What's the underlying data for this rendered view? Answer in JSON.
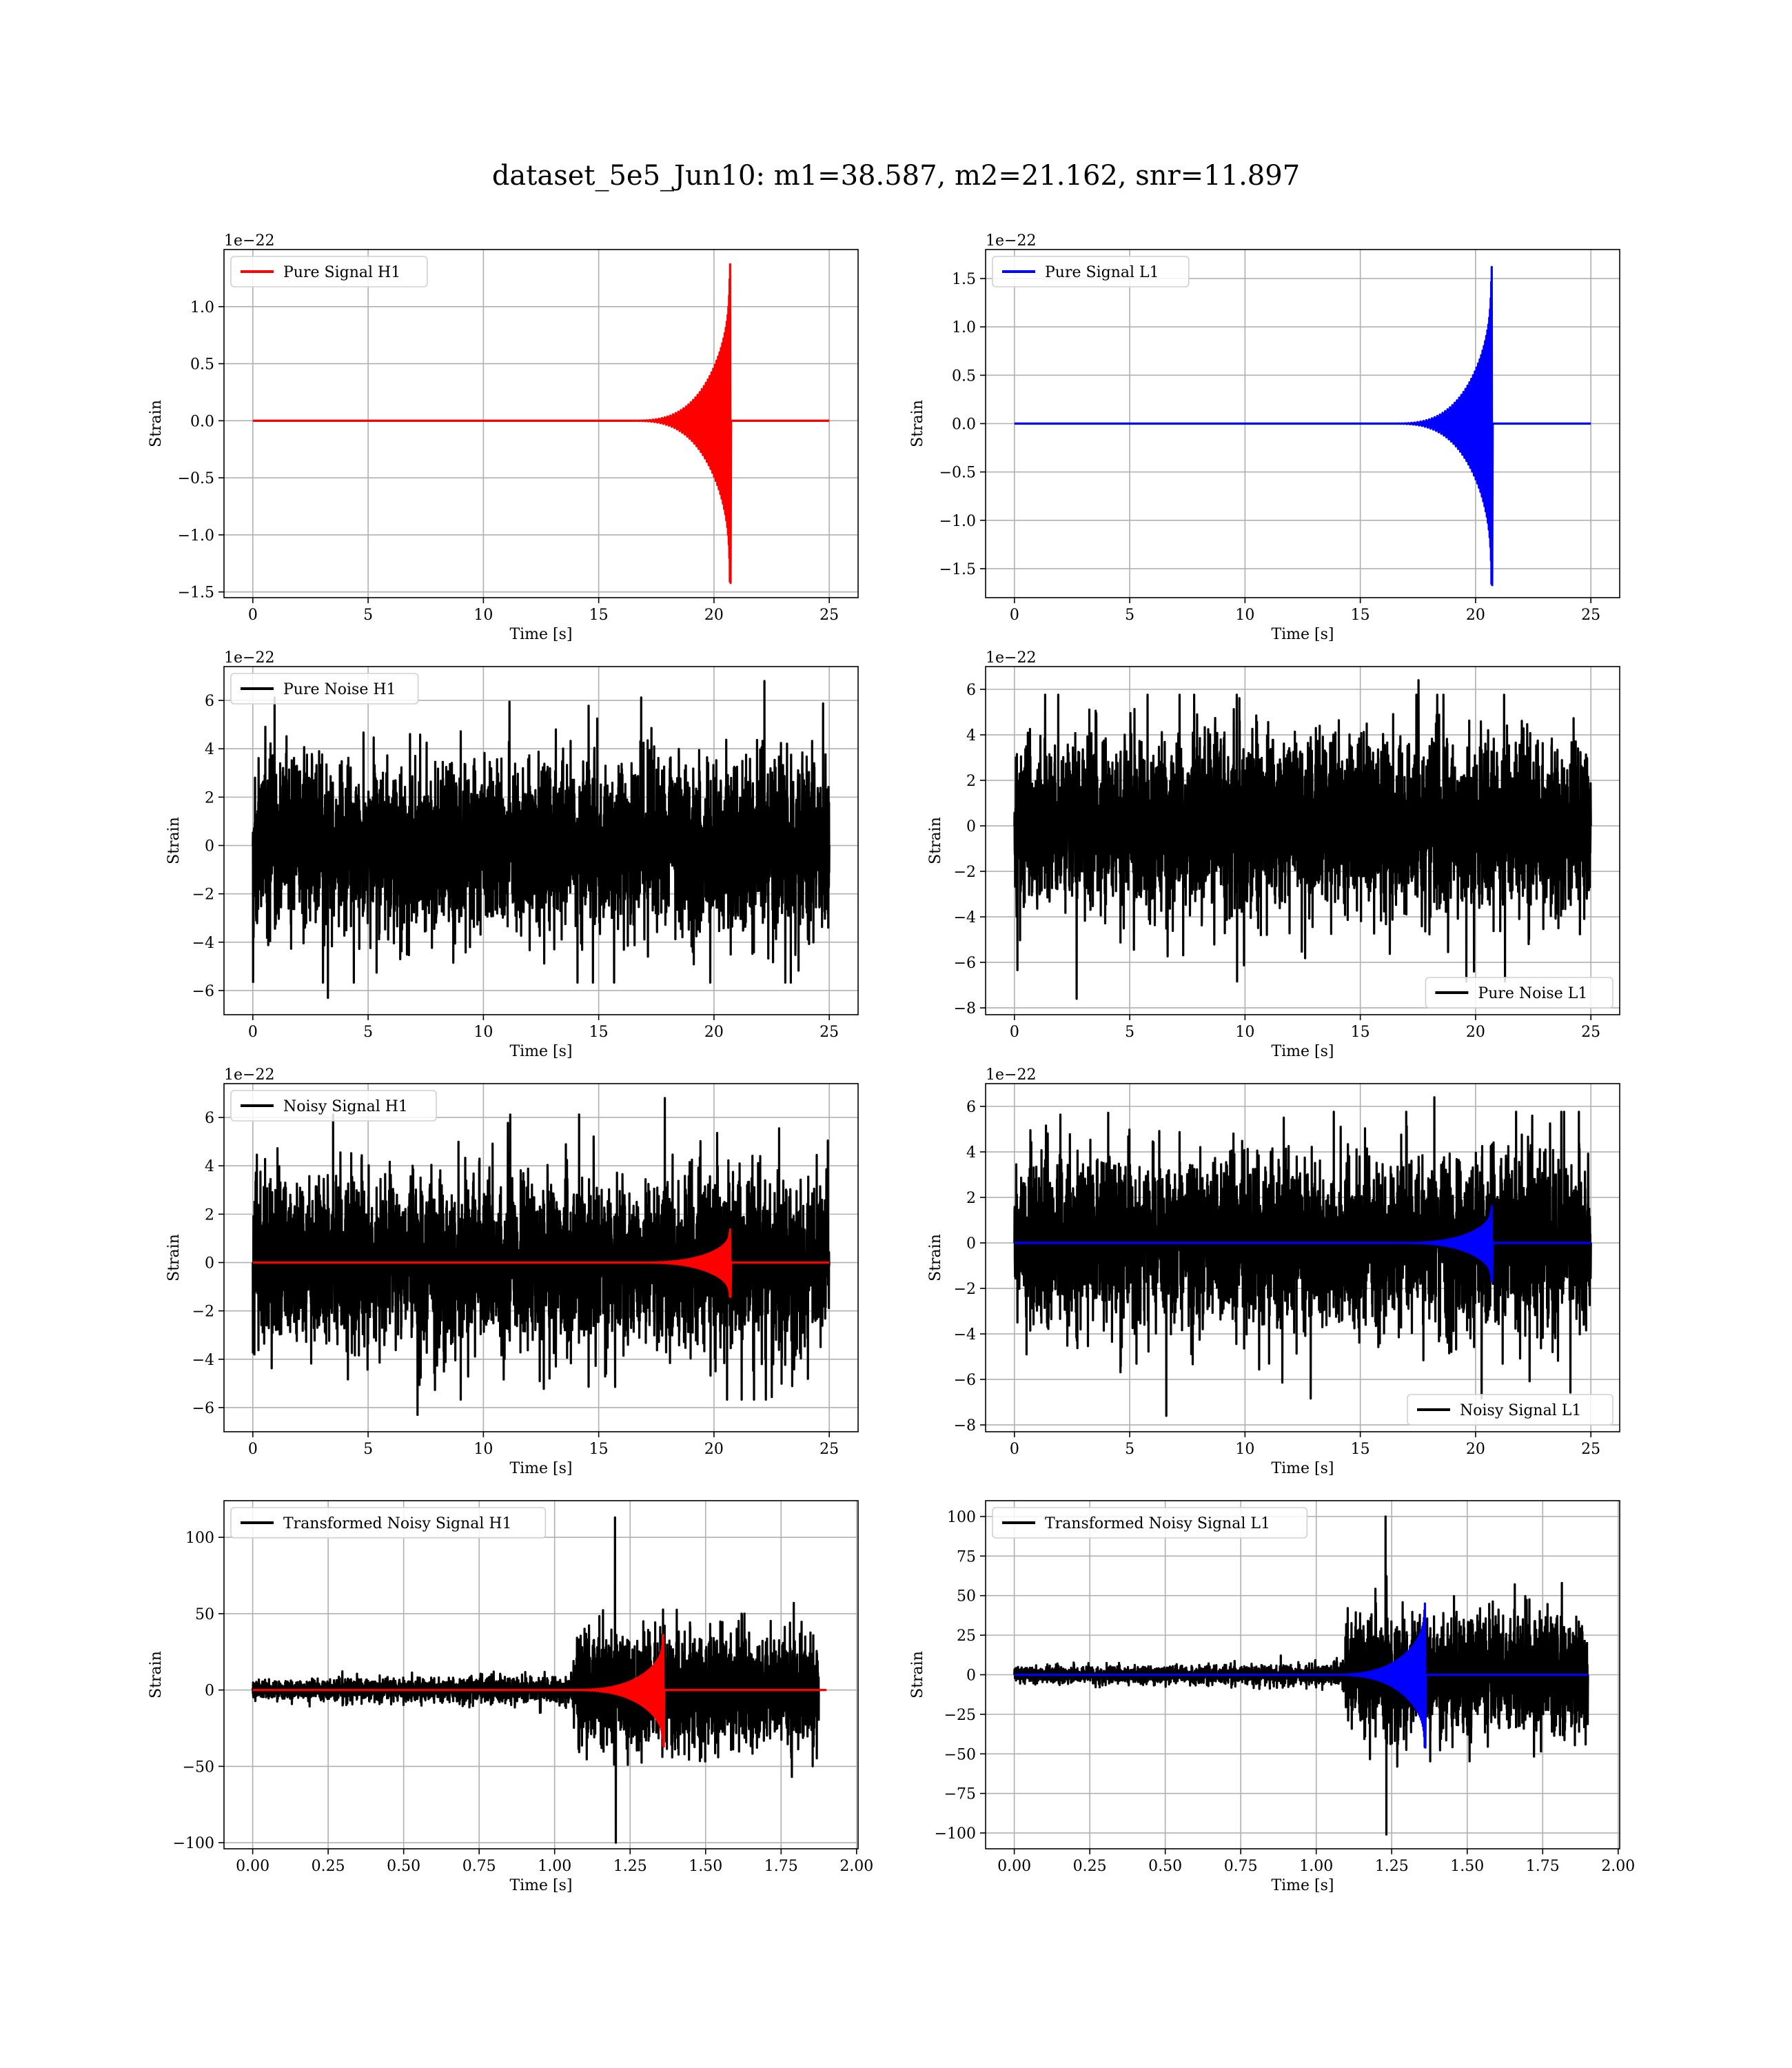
{
  "figure": {
    "title": "dataset_5e5_Jun10: m1=38.587, m2=21.162, snr=11.897"
  },
  "chart_data": [
    {
      "type": "line",
      "series": [
        {
          "name": "Pure Signal H1",
          "color": "#ff0000",
          "kind": "chirp",
          "t0": 0,
          "t1": 25,
          "tc": 20.7,
          "amp_max": 1.37,
          "amp_min": -1.42,
          "tail": 25
        }
      ],
      "xlabel": "Time [s]",
      "ylabel": "Strain",
      "offset_text": "1e−22",
      "xlim": [
        -1.25,
        26.25
      ],
      "ylim": [
        -1.55,
        1.5
      ],
      "xticks": [
        0,
        5,
        10,
        15,
        20,
        25
      ],
      "xtick_labels": [
        "0",
        "5",
        "10",
        "15",
        "20",
        "25"
      ],
      "yticks": [
        -1.5,
        -1.0,
        -0.5,
        0.0,
        0.5,
        1.0
      ],
      "ytick_labels": [
        "−1.5",
        "−1.0",
        "−0.5",
        "0.0",
        "0.5",
        "1.0"
      ],
      "legend_position": "upper-left",
      "grid": true
    },
    {
      "type": "line",
      "series": [
        {
          "name": "Pure Signal L1",
          "color": "#0000ff",
          "kind": "chirp",
          "t0": 0,
          "t1": 25,
          "tc": 20.7,
          "amp_max": 1.62,
          "amp_min": -1.67,
          "tail": 25
        }
      ],
      "xlabel": "Time [s]",
      "ylabel": "Strain",
      "offset_text": "1e−22",
      "xlim": [
        -1.25,
        26.25
      ],
      "ylim": [
        -1.8,
        1.8
      ],
      "xticks": [
        0,
        5,
        10,
        15,
        20,
        25
      ],
      "xtick_labels": [
        "0",
        "5",
        "10",
        "15",
        "20",
        "25"
      ],
      "yticks": [
        -1.5,
        -1.0,
        -0.5,
        0.0,
        0.5,
        1.0,
        1.5
      ],
      "ytick_labels": [
        "−1.5",
        "−1.0",
        "−0.5",
        "0.0",
        "0.5",
        "1.0",
        "1.5"
      ],
      "legend_position": "upper-left",
      "grid": true
    },
    {
      "type": "line",
      "series": [
        {
          "name": "Pure Noise H1",
          "color": "#000000",
          "kind": "noise",
          "t0": 0,
          "t1": 25,
          "amp": 3.6,
          "peak_max": 6.8,
          "peak_min": -6.3
        }
      ],
      "xlabel": "Time [s]",
      "ylabel": "Strain",
      "offset_text": "1e−22",
      "xlim": [
        -1.25,
        26.25
      ],
      "ylim": [
        -7.0,
        7.4
      ],
      "xticks": [
        0,
        5,
        10,
        15,
        20,
        25
      ],
      "xtick_labels": [
        "0",
        "5",
        "10",
        "15",
        "20",
        "25"
      ],
      "yticks": [
        -6,
        -4,
        -2,
        0,
        2,
        4,
        6
      ],
      "ytick_labels": [
        "−6",
        "−4",
        "−2",
        "0",
        "2",
        "4",
        "6"
      ],
      "legend_position": "upper-left",
      "grid": true
    },
    {
      "type": "line",
      "series": [
        {
          "name": "Pure Noise L1",
          "color": "#000000",
          "kind": "noise",
          "t0": 0,
          "t1": 25,
          "amp": 3.9,
          "peak_max": 6.4,
          "peak_min": -7.6
        }
      ],
      "xlabel": "Time [s]",
      "ylabel": "Strain",
      "offset_text": "1e−22",
      "xlim": [
        -1.25,
        26.25
      ],
      "ylim": [
        -8.3,
        7.0
      ],
      "xticks": [
        0,
        5,
        10,
        15,
        20,
        25
      ],
      "xtick_labels": [
        "0",
        "5",
        "10",
        "15",
        "20",
        "25"
      ],
      "yticks": [
        -8,
        -6,
        -4,
        -2,
        0,
        2,
        4,
        6
      ],
      "ytick_labels": [
        "−8",
        "−6",
        "−4",
        "−2",
        "0",
        "2",
        "4",
        "6"
      ],
      "legend_position": "lower-right",
      "grid": true
    },
    {
      "type": "line",
      "series": [
        {
          "name": "Noisy Signal H1",
          "color": "#000000",
          "kind": "noise",
          "t0": 0,
          "t1": 25,
          "amp": 3.6,
          "peak_max": 6.8,
          "peak_min": -6.3
        },
        {
          "name": "",
          "color": "#ff0000",
          "kind": "chirp",
          "t0": 0,
          "t1": 25,
          "tc": 20.7,
          "amp_max": 1.37,
          "amp_min": -1.42,
          "tail": 25
        }
      ],
      "xlabel": "Time [s]",
      "ylabel": "Strain",
      "offset_text": "1e−22",
      "xlim": [
        -1.25,
        26.25
      ],
      "ylim": [
        -7.0,
        7.4
      ],
      "xticks": [
        0,
        5,
        10,
        15,
        20,
        25
      ],
      "xtick_labels": [
        "0",
        "5",
        "10",
        "15",
        "20",
        "25"
      ],
      "yticks": [
        -6,
        -4,
        -2,
        0,
        2,
        4,
        6
      ],
      "ytick_labels": [
        "−6",
        "−4",
        "−2",
        "0",
        "2",
        "4",
        "6"
      ],
      "legend_position": "upper-left",
      "grid": true
    },
    {
      "type": "line",
      "series": [
        {
          "name": "Noisy Signal L1",
          "color": "#000000",
          "kind": "noise",
          "t0": 0,
          "t1": 25,
          "amp": 3.9,
          "peak_max": 6.4,
          "peak_min": -7.6
        },
        {
          "name": "",
          "color": "#0000ff",
          "kind": "chirp",
          "t0": 0,
          "t1": 25,
          "tc": 20.7,
          "amp_max": 1.62,
          "amp_min": -1.67,
          "tail": 25
        }
      ],
      "xlabel": "Time [s]",
      "ylabel": "Strain",
      "offset_text": "1e−22",
      "xlim": [
        -1.25,
        26.25
      ],
      "ylim": [
        -8.3,
        7.0
      ],
      "xticks": [
        0,
        5,
        10,
        15,
        20,
        25
      ],
      "xtick_labels": [
        "0",
        "5",
        "10",
        "15",
        "20",
        "25"
      ],
      "yticks": [
        -8,
        -6,
        -4,
        -2,
        0,
        2,
        4,
        6
      ],
      "ytick_labels": [
        "−8",
        "−6",
        "−4",
        "−2",
        "0",
        "2",
        "4",
        "6"
      ],
      "legend_position": "lower-right",
      "grid": true
    },
    {
      "type": "line",
      "series": [
        {
          "name": "Transformed Noisy Signal H1",
          "color": "#000000",
          "kind": "whitened",
          "t0": 0,
          "t1": 1.875,
          "t_onset": 1.08,
          "amp_before": 9,
          "amp_after": 45,
          "peak_max": 113,
          "peak_min": -100
        },
        {
          "name": "",
          "color": "#ff0000",
          "kind": "chirp",
          "t0": 0,
          "t1": 1.9,
          "tc": 1.36,
          "amp_max": 36,
          "amp_min": -37,
          "tail": 1.9
        }
      ],
      "xlabel": "Time [s]",
      "ylabel": "Strain",
      "offset_text": "",
      "xlim": [
        -0.095,
        2.005
      ],
      "ylim": [
        -104,
        124
      ],
      "xticks": [
        0.0,
        0.25,
        0.5,
        0.75,
        1.0,
        1.25,
        1.5,
        1.75,
        2.0
      ],
      "xtick_labels": [
        "0.00",
        "0.25",
        "0.50",
        "0.75",
        "1.00",
        "1.25",
        "1.50",
        "1.75",
        "2.00"
      ],
      "yticks": [
        -100,
        -50,
        0,
        50,
        100
      ],
      "ytick_labels": [
        "−100",
        "−50",
        "0",
        "50",
        "100"
      ],
      "legend_position": "upper-left",
      "grid": true
    },
    {
      "type": "line",
      "series": [
        {
          "name": "Transformed Noisy Signal L1",
          "color": "#000000",
          "kind": "whitened",
          "t0": 0,
          "t1": 1.9,
          "t_onset": 1.11,
          "amp_before": 7,
          "amp_after": 45,
          "peak_max": 100,
          "peak_min": -101
        },
        {
          "name": "",
          "color": "#0000ff",
          "kind": "chirp",
          "t0": 0,
          "t1": 1.9,
          "tc": 1.36,
          "amp_max": 45,
          "amp_min": -46,
          "tail": 1.9
        }
      ],
      "xlabel": "Time [s]",
      "ylabel": "Strain",
      "offset_text": "",
      "xlim": [
        -0.095,
        2.005
      ],
      "ylim": [
        -110,
        110
      ],
      "xticks": [
        0.0,
        0.25,
        0.5,
        0.75,
        1.0,
        1.25,
        1.5,
        1.75,
        2.0
      ],
      "xtick_labels": [
        "0.00",
        "0.25",
        "0.50",
        "0.75",
        "1.00",
        "1.25",
        "1.50",
        "1.75",
        "2.00"
      ],
      "yticks": [
        -100,
        -75,
        -50,
        -25,
        0,
        25,
        50,
        75,
        100
      ],
      "ytick_labels": [
        "−100",
        "−75",
        "−50",
        "−25",
        "0",
        "25",
        "50",
        "75",
        "100"
      ],
      "legend_position": "upper-left",
      "grid": true
    }
  ]
}
